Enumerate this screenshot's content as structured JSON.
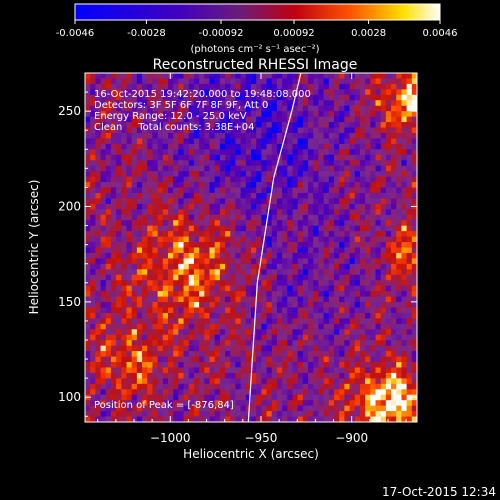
{
  "colorbar": {
    "ticks": [
      "-0.0046",
      "-0.0028",
      "-0.00092",
      "0.00092",
      "0.0028",
      "0.0046"
    ],
    "min": -0.0046,
    "max": 0.0046,
    "units_label": "(photons cm⁻² s⁻¹ asec⁻²)"
  },
  "chart_data": {
    "type": "heatmap",
    "title": "Reconstructed RHESSI Image",
    "xlabel": "Heliocentric X (arcsec)",
    "ylabel": "Heliocentric Y (arcsec)",
    "xlim": [
      -1047,
      -864
    ],
    "ylim": [
      87,
      270
    ],
    "x_ticks": [
      {
        "value": -1000,
        "label": "−1000"
      },
      {
        "value": -950,
        "label": "−950"
      },
      {
        "value": -900,
        "label": "−900"
      }
    ],
    "y_ticks": [
      {
        "value": 100,
        "label": "100"
      },
      {
        "value": 150,
        "label": "150"
      },
      {
        "value": 200,
        "label": "200"
      },
      {
        "value": 250,
        "label": "250"
      }
    ],
    "limb": [
      [
        -957,
        87
      ],
      [
        -952,
        160
      ],
      [
        -943,
        215
      ],
      [
        -933,
        250
      ],
      [
        -928,
        270
      ]
    ],
    "info_lines": [
      "16-Oct-2015 19:42:20.000 to 19:48:08.000",
      "Detectors: 3F 5F 6F 7F 8F 9F, Att 0",
      "Energy Range: 12.0 - 25.0 keV",
      "Clean     Total counts: 3.38E+04"
    ],
    "peak_label": "Position of Peak = [-876,84]",
    "palette": [
      "#0000ff",
      "#5a00b0",
      "#7a2a90",
      "#c01010",
      "#ff4000",
      "#ffc000",
      "#ffffff"
    ]
  },
  "footer": {
    "timestamp": "17-Oct-2015 12:34"
  }
}
